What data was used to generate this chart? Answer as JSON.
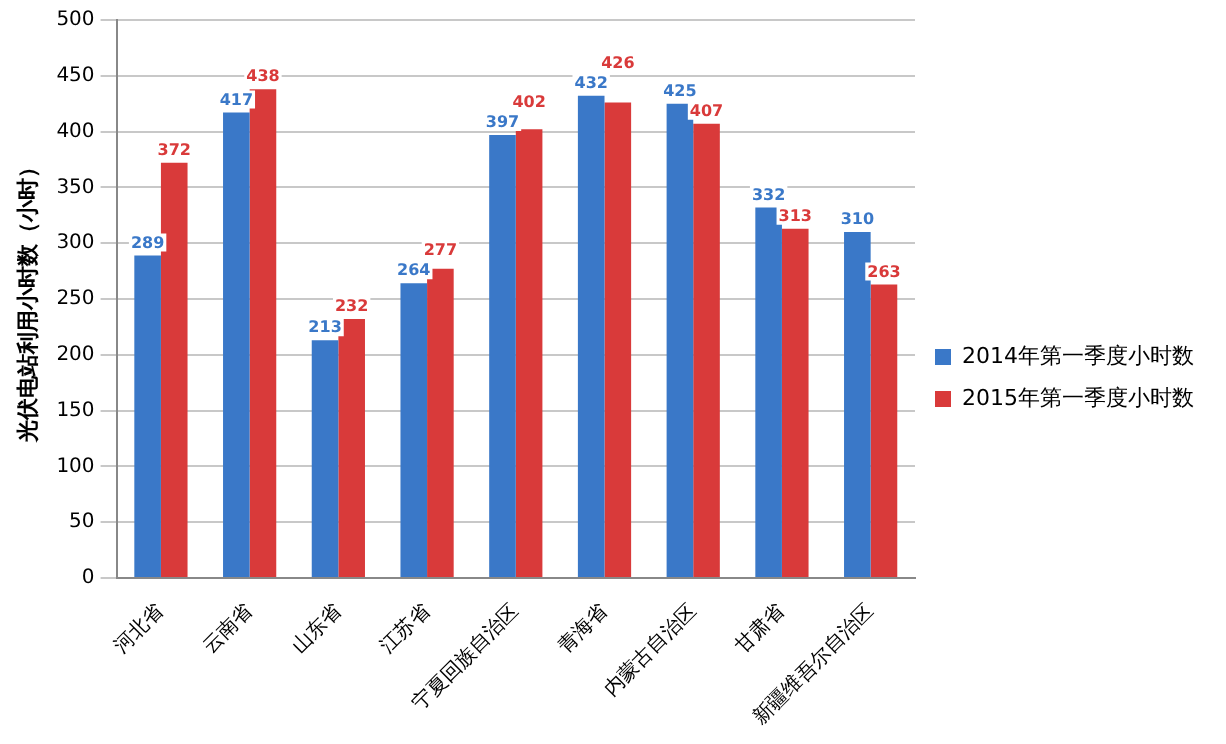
{
  "chart_data": {
    "type": "bar",
    "ylabel": "光伏电站利用小时数（小时）",
    "categories": [
      "河北省",
      "云南省",
      "山东省",
      "江苏省",
      "宁夏回族自治区",
      "青海省",
      "内蒙古自治区",
      "甘肃省",
      "新疆维吾尔自治区"
    ],
    "series": [
      {
        "name": "2014年第一季度小时数",
        "color": "#3a78c8",
        "values": [
          289,
          417,
          213,
          264,
          397,
          432,
          425,
          332,
          310
        ]
      },
      {
        "name": "2015年第一季度小时数",
        "color": "#d93a3a",
        "values": [
          372,
          438,
          232,
          277,
          402,
          426,
          407,
          313,
          263
        ]
      }
    ],
    "ylim": [
      0,
      500
    ],
    "yticks": [
      0,
      50,
      100,
      150,
      200,
      250,
      300,
      350,
      400,
      450,
      500
    ],
    "grid": "y",
    "legend": "right",
    "data_labels": true
  }
}
